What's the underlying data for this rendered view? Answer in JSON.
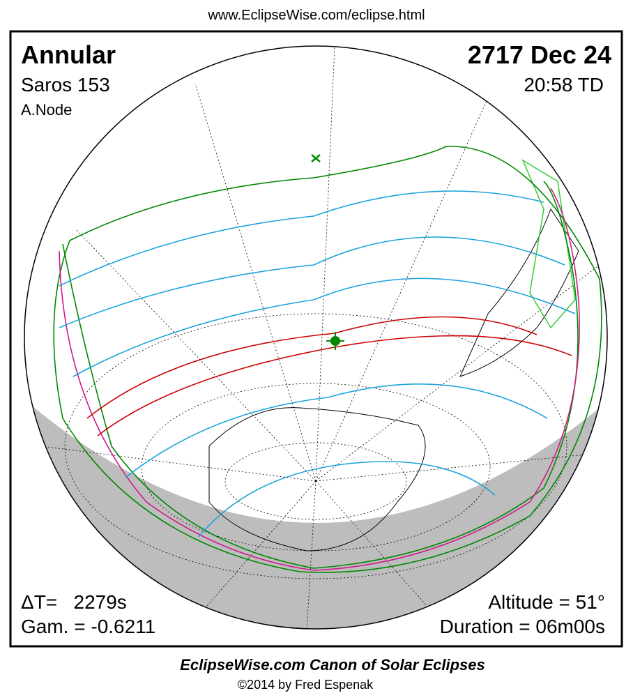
{
  "header": {
    "url": "www.EclipseWise.com/eclipse.html"
  },
  "panel": {
    "top_left": {
      "eclipse_type": "Annular",
      "saros": "Saros 153",
      "node": "A.Node"
    },
    "top_right": {
      "date": "2717 Dec 24",
      "time": "20:58 TD"
    },
    "bottom_left": {
      "delta_t": "ΔT=   2279s",
      "gamma": "Gam. = -0.6211"
    },
    "bottom_right": {
      "altitude": "Altitude = 51°",
      "duration": "Duration = 06m00s"
    }
  },
  "footer": {
    "title": "EclipseWise.com Canon of Solar Eclipses",
    "credit": "©2014 by Fred Espenak"
  }
}
